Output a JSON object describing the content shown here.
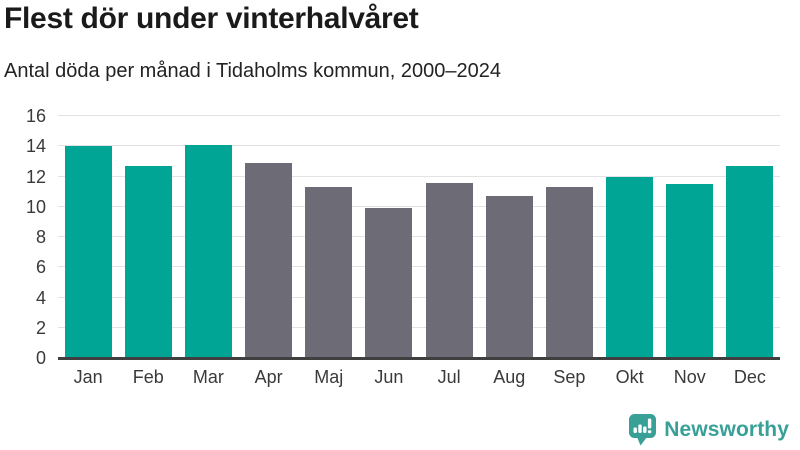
{
  "header": {
    "title": "Flest dör under vinterhalvåret",
    "subtitle": "Antal döda per månad i Tidaholms kommun, 2000–2024"
  },
  "chart_data": {
    "type": "bar",
    "title": "Flest dör under vinterhalvåret",
    "subtitle": "Antal döda per månad i Tidaholms kommun, 2000–2024",
    "categories": [
      "Jan",
      "Feb",
      "Mar",
      "Apr",
      "Maj",
      "Jun",
      "Jul",
      "Aug",
      "Sep",
      "Okt",
      "Nov",
      "Dec"
    ],
    "values": [
      14.0,
      12.7,
      14.1,
      12.9,
      11.3,
      9.9,
      11.6,
      10.7,
      11.3,
      12.0,
      11.5,
      12.7
    ],
    "highlighted": [
      true,
      true,
      true,
      false,
      false,
      false,
      false,
      false,
      false,
      true,
      true,
      true
    ],
    "xlabel": "",
    "ylabel": "",
    "ylim": [
      0,
      16
    ],
    "yticks": [
      0,
      2,
      4,
      6,
      8,
      10,
      12,
      14,
      16
    ],
    "grid": true,
    "legend": "none",
    "colors": {
      "highlight": "#00a596",
      "base": "#6d6b75",
      "gridline": "#e3e3e3",
      "axis_line": "#3f3f3f",
      "tick_text": "#3a3a3a"
    }
  },
  "footer": {
    "brand": "Newsworthy",
    "brand_color": "#38a097",
    "logo_icon": "bar-chart-speech-bubble-icon"
  }
}
